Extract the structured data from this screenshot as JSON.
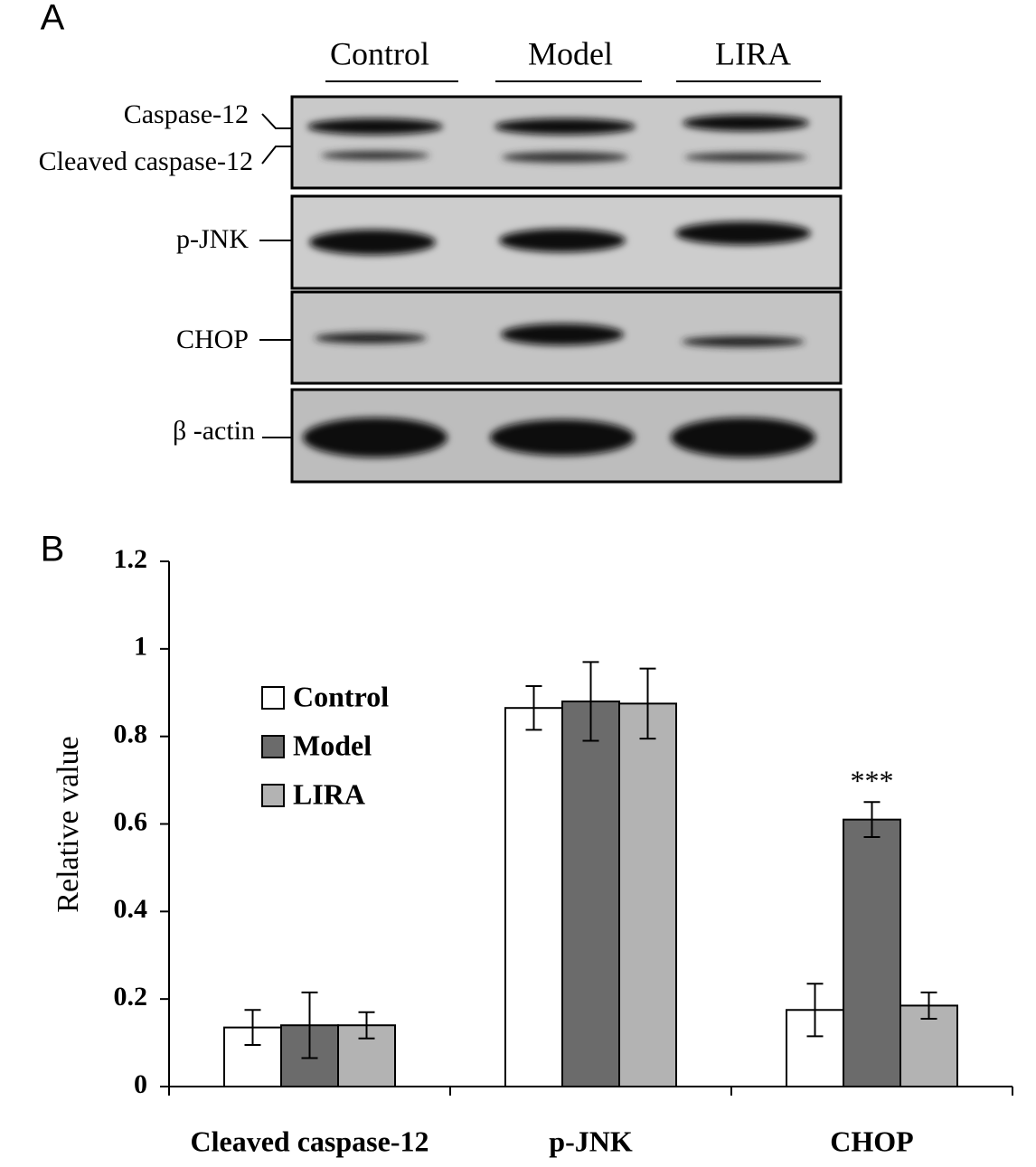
{
  "panel_a": {
    "label": "A",
    "lanes": [
      "Control",
      "Model",
      "LIRA"
    ],
    "rows": [
      "Caspase-12",
      "Cleaved caspase-12",
      "p-JNK",
      "CHOP",
      "β -actin"
    ]
  },
  "chart_data": {
    "type": "bar",
    "panel_label": "B",
    "y_label": "Relative value",
    "categories": [
      "Cleaved caspase-12",
      "p-JNK",
      "CHOP"
    ],
    "series": [
      {
        "name": "Control",
        "color": "#ffffff",
        "values": [
          0.135,
          0.865,
          0.175
        ],
        "errors": [
          0.04,
          0.05,
          0.06
        ]
      },
      {
        "name": "Model",
        "color": "#6b6b6b",
        "values": [
          0.14,
          0.88,
          0.61
        ],
        "errors": [
          0.075,
          0.09,
          0.04
        ]
      },
      {
        "name": "LIRA",
        "color": "#b3b3b3",
        "values": [
          0.14,
          0.875,
          0.185
        ],
        "errors": [
          0.03,
          0.08,
          0.03
        ]
      }
    ],
    "annotation": "***",
    "ylim": [
      0,
      1.2
    ],
    "yticks": [
      0,
      0.2,
      0.4,
      0.6,
      0.8,
      1,
      1.2
    ],
    "grid": false,
    "legend": "upper left"
  }
}
